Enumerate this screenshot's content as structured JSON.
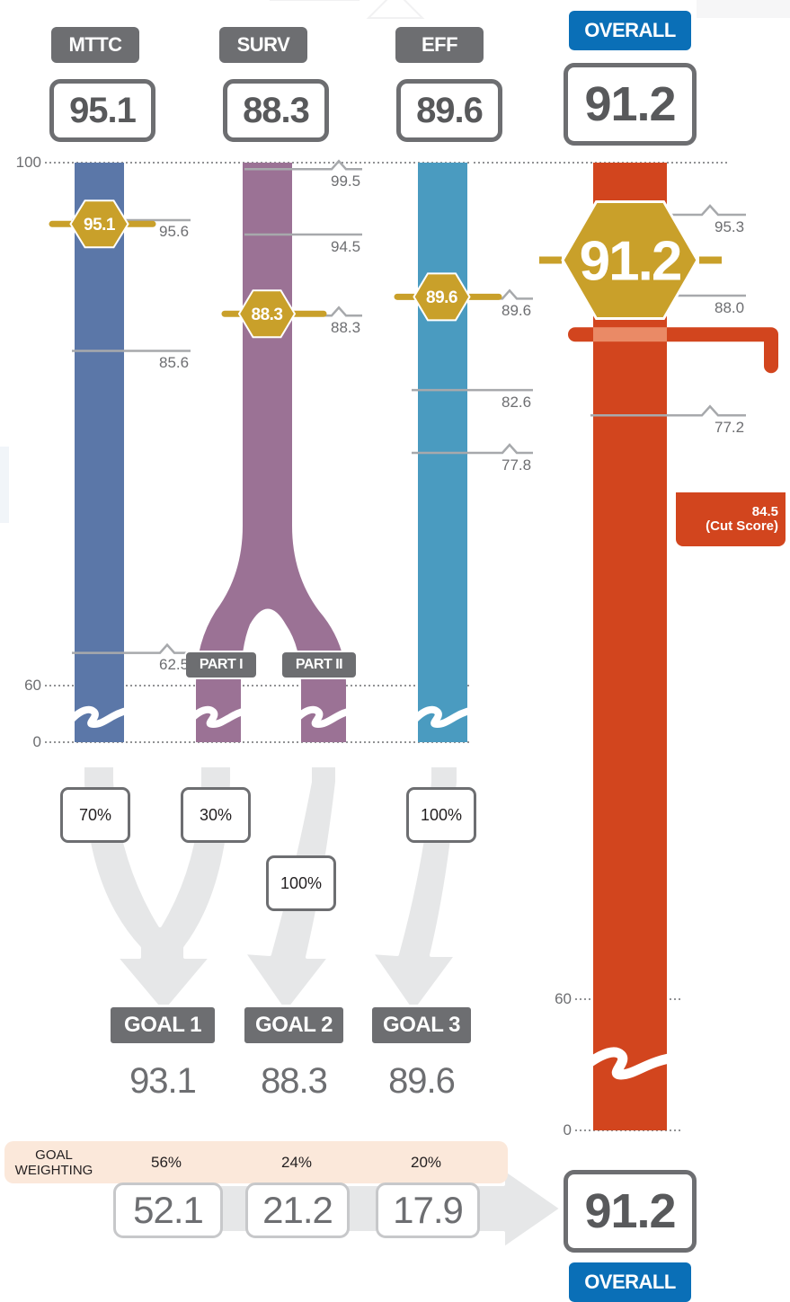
{
  "metrics": [
    {
      "label": "MTTC",
      "score": "95.1",
      "color": "#5b77a8",
      "score_value": 95.1,
      "ticks": [
        {
          "value": 95.6,
          "label": "95.6"
        },
        {
          "value": 85.6,
          "label": "85.6"
        },
        {
          "value": 62.5,
          "label": "62.5"
        }
      ]
    },
    {
      "label": "SURV",
      "score": "88.3",
      "color": "#9b7295",
      "score_value": 88.3,
      "ticks": [
        {
          "value": 99.5,
          "label": "99.5"
        },
        {
          "value": 94.5,
          "label": "94.5"
        },
        {
          "value": 88.3,
          "label": "88.3"
        }
      ],
      "parts": [
        "PART I",
        "PART II"
      ]
    },
    {
      "label": "EFF",
      "score": "89.6",
      "color": "#4a9bc0",
      "score_value": 89.6,
      "ticks": [
        {
          "value": 89.6,
          "label": "89.6"
        },
        {
          "value": 82.6,
          "label": "82.6"
        },
        {
          "value": 77.8,
          "label": "77.8"
        }
      ]
    }
  ],
  "overall": {
    "label": "OVERALL",
    "score": "91.2",
    "score_value": 91.2,
    "color": "#d2451e",
    "ticks": [
      {
        "value": 95.3,
        "label": "95.3"
      },
      {
        "value": 88.0,
        "label": "88.0"
      },
      {
        "value": 77.2,
        "label": "77.2"
      }
    ],
    "cut_score_value": 84.5,
    "cut_score_number": "84.5",
    "cut_score_text": "(Cut Score)"
  },
  "axis": {
    "top": "100",
    "mid": "60",
    "bottom": "0"
  },
  "weights": [
    "70%",
    "30%",
    "100%",
    "100%"
  ],
  "goals": [
    {
      "label": "GOAL 1",
      "value": "93.1",
      "weighting": "56%",
      "contribution": "52.1"
    },
    {
      "label": "GOAL 2",
      "value": "88.3",
      "weighting": "24%",
      "contribution": "21.2"
    },
    {
      "label": "GOAL 3",
      "value": "89.6",
      "weighting": "20%",
      "contribution": "17.9"
    }
  ],
  "goal_weighting_label": "GOAL WEIGHTING",
  "final": {
    "score": "91.2",
    "label": "OVERALL"
  },
  "colors": {
    "gold": "#c9a02a",
    "gray": "#6d6e71",
    "blue_tag": "#0a6fb7",
    "flow_gray": "#e6e7e8",
    "weight_band": "#fbe8da"
  }
}
